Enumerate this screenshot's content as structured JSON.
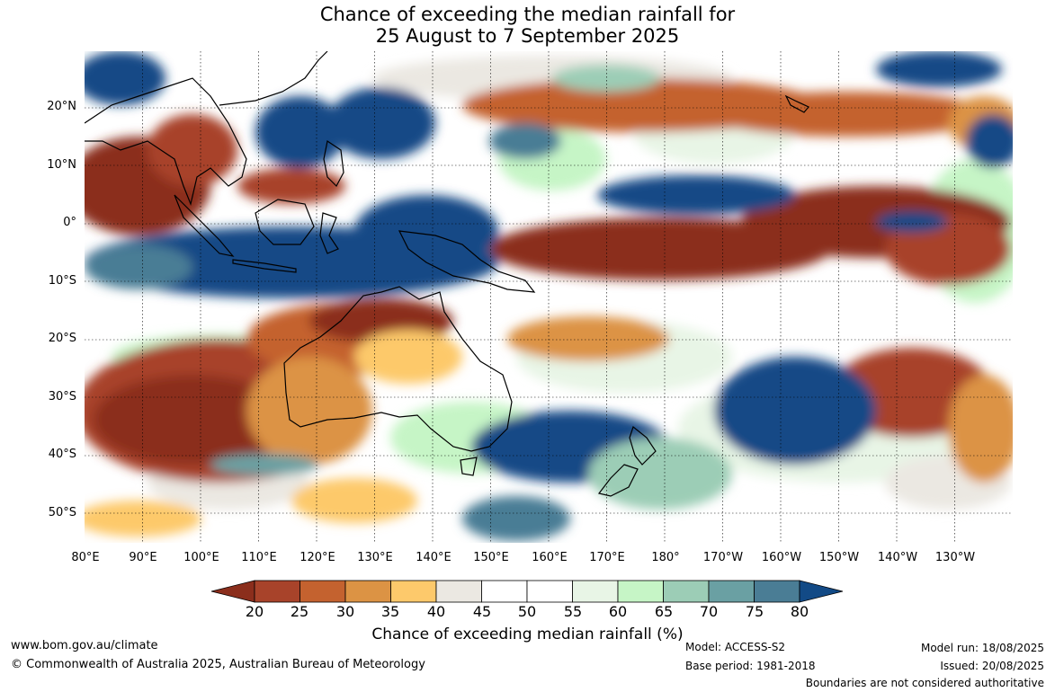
{
  "title_line1": "Chance of exceeding the median rainfall for",
  "title_line2": "25 August to 7 September 2025",
  "latitude_labels": [
    "20°N",
    "10°N",
    "0°",
    "10°S",
    "20°S",
    "30°S",
    "40°S",
    "50°S"
  ],
  "longitude_labels": [
    "80°E",
    "90°E",
    "100°E",
    "110°E",
    "120°E",
    "130°E",
    "140°E",
    "150°E",
    "160°E",
    "170°E",
    "180°",
    "170°W",
    "160°W",
    "150°W",
    "140°W",
    "130°W"
  ],
  "colorbar": {
    "ticks": [
      "20",
      "25",
      "30",
      "35",
      "40",
      "45",
      "50",
      "55",
      "60",
      "65",
      "70",
      "75",
      "80"
    ],
    "label": "Chance of exceeding median rainfall (%)",
    "colors": [
      "#8b2e1c",
      "#a8432a",
      "#c4622f",
      "#dc9344",
      "#fdc96b",
      "#ebe8e2",
      "#ffffff",
      "#ffffff",
      "#e8f5e6",
      "#c6f5c6",
      "#9ccdb6",
      "#6aa0a3",
      "#4a7d95",
      "#124a86"
    ]
  },
  "footer": {
    "website": "www.bom.gov.au/climate",
    "copyright": "© Commonwealth of Australia 2025, Australian Bureau of Meteorology",
    "model": "Model: ACCESS-S2",
    "base_period": "Base period: 1981-2018",
    "model_run": "Model run: 18/08/2025",
    "issued": "Issued: 20/08/2025",
    "disclaimer": "Boundaries are not considered authoritative"
  }
}
